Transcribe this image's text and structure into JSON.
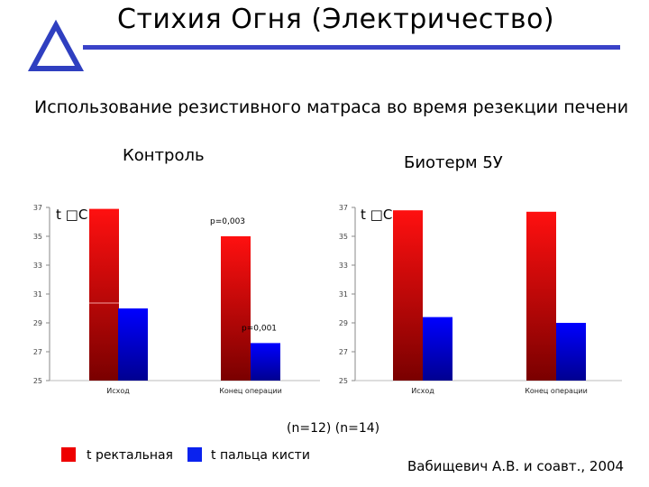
{
  "slide": {
    "title": "Стихия Огня (Электричество)",
    "subtitle": "Использование резистивного матраса во время резекции печени",
    "sample_note": "(n=12)  (n=14)",
    "citation": "Вабищевич А.В. и соавт., 2004",
    "accent_color": "#3a42c8",
    "logo_icon": "triangle-logo-icon"
  },
  "legend": {
    "items": [
      {
        "label": "t ректальная",
        "color": "#ee0000"
      },
      {
        "label": "t пальца кисти",
        "color": "#0a22ee"
      }
    ]
  },
  "chart_data": [
    {
      "type": "bar",
      "title": "Контроль",
      "ylabel": "t □С",
      "ylim": [
        25,
        37
      ],
      "yticks": [
        25,
        27,
        29,
        31,
        33,
        35,
        37
      ],
      "categories": [
        "Исход",
        "Конец операции"
      ],
      "series": [
        {
          "name": "t ректальная",
          "values": [
            36.9,
            35.0
          ]
        },
        {
          "name": "t пальца кисти",
          "values": [
            30.0,
            27.6
          ]
        }
      ],
      "annotations": [
        {
          "text": "p=0,003",
          "category": "Конец операции",
          "series": "t ректальная"
        },
        {
          "text": "p=0,001",
          "category": "Конец операции",
          "series": "t пальца кисти"
        }
      ]
    },
    {
      "type": "bar",
      "title": "Биотерм 5У",
      "ylabel": "t □С",
      "ylim": [
        25,
        37
      ],
      "yticks": [
        25,
        27,
        29,
        31,
        33,
        35,
        37
      ],
      "categories": [
        "Исход",
        "Конец операции"
      ],
      "series": [
        {
          "name": "t ректальная",
          "values": [
            36.8,
            36.7
          ]
        },
        {
          "name": "t пальца кисти",
          "values": [
            29.4,
            29.0
          ]
        }
      ],
      "annotations": []
    }
  ]
}
